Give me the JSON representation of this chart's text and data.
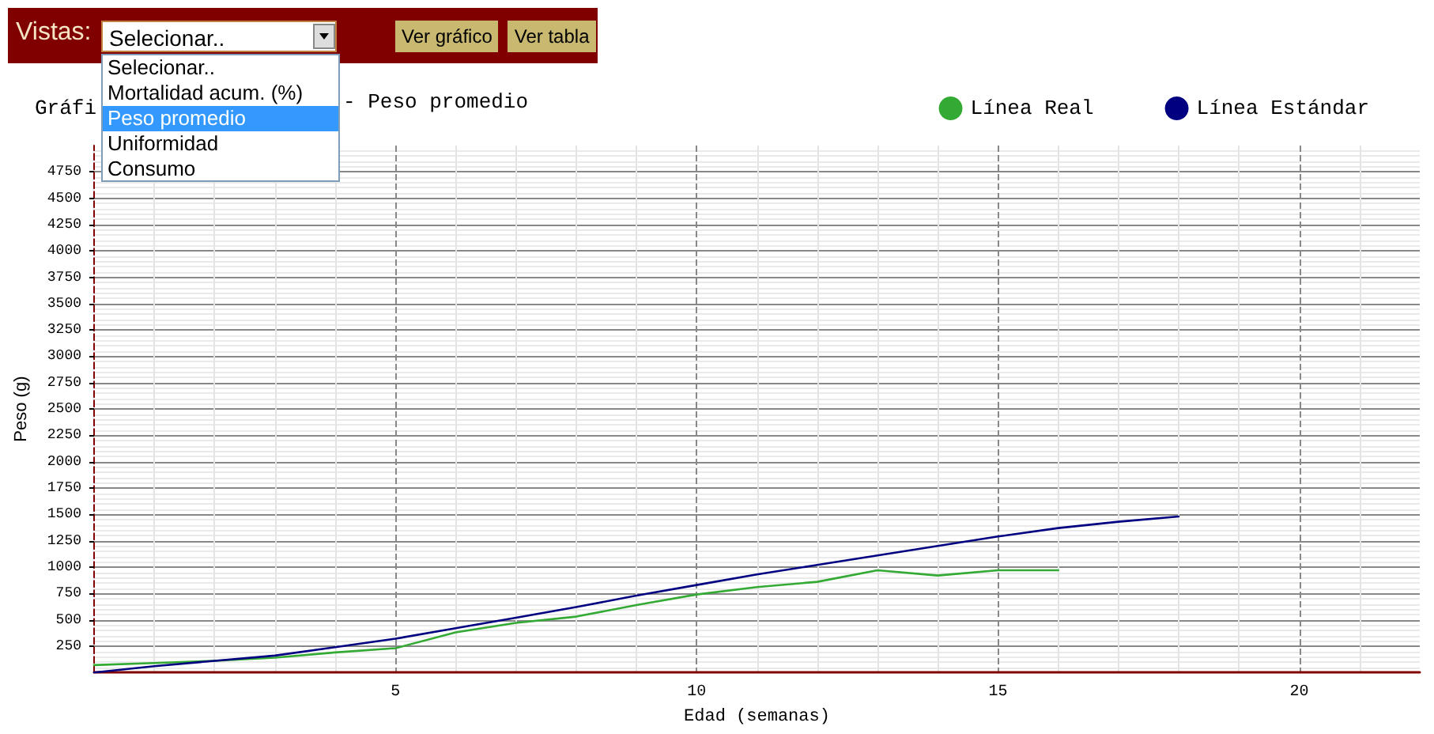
{
  "chart_data": {
    "type": "line",
    "title": "Gráfi",
    "xlabel": "Edad (semanas)",
    "ylabel": "Peso (g)",
    "annotations": [
      "- Peso promedio",
      "Vistas:",
      "Selecionar..",
      "Ver gráfico",
      "Ver tabla",
      "Selecionar..",
      "Mortalidad acum. (%)",
      "Peso promedio",
      "Uniformidad",
      "Consumo"
    ],
    "series": [
      {
        "name": "Línea Real",
        "color": "#33aa33",
        "x": [
          0,
          1,
          2,
          3,
          4,
          5,
          6,
          7,
          8,
          9,
          10,
          11,
          12,
          13,
          14,
          15,
          16
        ],
        "values": [
          70,
          90,
          110,
          140,
          190,
          230,
          380,
          470,
          530,
          640,
          740,
          810,
          860,
          970,
          920,
          970,
          970
        ]
      },
      {
        "name": "Línea Estándar",
        "color": "#000080",
        "x": [
          0,
          1,
          2,
          3,
          4,
          5,
          6,
          7,
          8,
          9,
          10,
          11,
          12,
          13,
          14,
          15,
          16,
          17,
          18
        ],
        "values": [
          0,
          60,
          110,
          160,
          240,
          320,
          420,
          520,
          620,
          730,
          830,
          930,
          1020,
          1110,
          1200,
          1290,
          1370,
          1430,
          1480
        ]
      }
    ],
    "xlim": [
      0,
      22
    ],
    "xticks": [
      5,
      10,
      15,
      20
    ],
    "ylim": [
      0,
      5000
    ],
    "yticks": [
      250,
      500,
      750,
      1000,
      1250,
      1500,
      1750,
      2000,
      2250,
      2500,
      2750,
      3000,
      3250,
      3500,
      3750,
      4000,
      4250,
      4500,
      4750
    ],
    "grid": true,
    "legend": "top right",
    "marker": "none",
    "line_style": "solid"
  }
}
